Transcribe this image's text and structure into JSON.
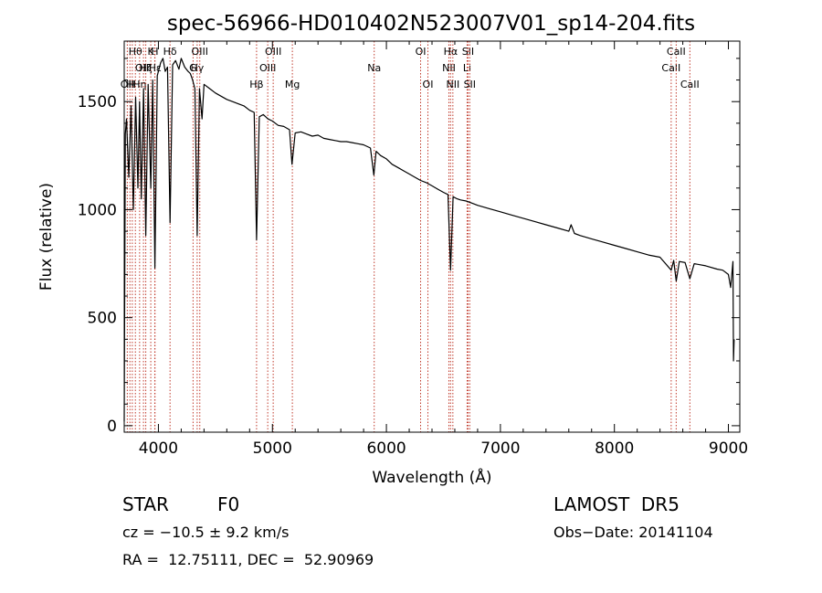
{
  "chart_data": {
    "type": "line",
    "title": "spec-56966-HD010402N523007V01_sp14-204.fits",
    "xlabel": "Wavelength (Å)",
    "ylabel": "Flux (relative)",
    "xlim": [
      3700,
      9100
    ],
    "ylim": [
      -30,
      1780
    ],
    "xticks": [
      4000,
      5000,
      6000,
      7000,
      8000,
      9000
    ],
    "yticks": [
      0,
      500,
      1000,
      1500
    ],
    "grid": false,
    "series": [
      {
        "color": "#000000",
        "points": [
          [
            3700,
            20
          ],
          [
            3710,
            1350
          ],
          [
            3720,
            1420
          ],
          [
            3740,
            1150
          ],
          [
            3760,
            1480
          ],
          [
            3780,
            1000
          ],
          [
            3800,
            1520
          ],
          [
            3820,
            1100
          ],
          [
            3835,
            1500
          ],
          [
            3850,
            1050
          ],
          [
            3870,
            1560
          ],
          [
            3889,
            880
          ],
          [
            3910,
            1580
          ],
          [
            3933,
            1100
          ],
          [
            3950,
            1600
          ],
          [
            3969,
            730
          ],
          [
            3990,
            1620
          ],
          [
            4020,
            1680
          ],
          [
            4040,
            1700
          ],
          [
            4060,
            1640
          ],
          [
            4080,
            1660
          ],
          [
            4102,
            940
          ],
          [
            4125,
            1670
          ],
          [
            4150,
            1690
          ],
          [
            4180,
            1650
          ],
          [
            4200,
            1700
          ],
          [
            4230,
            1660
          ],
          [
            4260,
            1640
          ],
          [
            4280,
            1630
          ],
          [
            4300,
            1600
          ],
          [
            4320,
            1560
          ],
          [
            4340,
            880
          ],
          [
            4360,
            1560
          ],
          [
            4383,
            1420
          ],
          [
            4400,
            1580
          ],
          [
            4450,
            1560
          ],
          [
            4500,
            1540
          ],
          [
            4550,
            1525
          ],
          [
            4600,
            1510
          ],
          [
            4650,
            1500
          ],
          [
            4700,
            1490
          ],
          [
            4750,
            1480
          ],
          [
            4800,
            1460
          ],
          [
            4840,
            1450
          ],
          [
            4861,
            860
          ],
          [
            4885,
            1430
          ],
          [
            4920,
            1440
          ],
          [
            4960,
            1420
          ],
          [
            5000,
            1410
          ],
          [
            5050,
            1390
          ],
          [
            5100,
            1385
          ],
          [
            5150,
            1370
          ],
          [
            5172,
            1210
          ],
          [
            5200,
            1355
          ],
          [
            5250,
            1360
          ],
          [
            5300,
            1350
          ],
          [
            5350,
            1340
          ],
          [
            5400,
            1345
          ],
          [
            5450,
            1330
          ],
          [
            5500,
            1325
          ],
          [
            5550,
            1320
          ],
          [
            5600,
            1315
          ],
          [
            5650,
            1315
          ],
          [
            5700,
            1310
          ],
          [
            5750,
            1305
          ],
          [
            5800,
            1300
          ],
          [
            5860,
            1285
          ],
          [
            5890,
            1160
          ],
          [
            5910,
            1270
          ],
          [
            5950,
            1250
          ],
          [
            6000,
            1235
          ],
          [
            6050,
            1210
          ],
          [
            6100,
            1195
          ],
          [
            6150,
            1180
          ],
          [
            6200,
            1165
          ],
          [
            6250,
            1150
          ],
          [
            6300,
            1135
          ],
          [
            6350,
            1125
          ],
          [
            6400,
            1110
          ],
          [
            6450,
            1095
          ],
          [
            6500,
            1080
          ],
          [
            6540,
            1070
          ],
          [
            6563,
            720
          ],
          [
            6585,
            1060
          ],
          [
            6620,
            1050
          ],
          [
            6650,
            1045
          ],
          [
            6700,
            1040
          ],
          [
            6750,
            1030
          ],
          [
            6800,
            1020
          ],
          [
            6900,
            1005
          ],
          [
            7000,
            990
          ],
          [
            7100,
            975
          ],
          [
            7200,
            960
          ],
          [
            7300,
            945
          ],
          [
            7400,
            930
          ],
          [
            7500,
            915
          ],
          [
            7600,
            900
          ],
          [
            7620,
            930
          ],
          [
            7650,
            890
          ],
          [
            7700,
            880
          ],
          [
            7800,
            865
          ],
          [
            7900,
            850
          ],
          [
            8000,
            835
          ],
          [
            8100,
            820
          ],
          [
            8200,
            805
          ],
          [
            8300,
            790
          ],
          [
            8400,
            780
          ],
          [
            8498,
            720
          ],
          [
            8520,
            765
          ],
          [
            8542,
            670
          ],
          [
            8570,
            760
          ],
          [
            8620,
            755
          ],
          [
            8662,
            680
          ],
          [
            8700,
            750
          ],
          [
            8800,
            740
          ],
          [
            8900,
            725
          ],
          [
            8950,
            720
          ],
          [
            9000,
            700
          ],
          [
            9020,
            640
          ],
          [
            9040,
            760
          ],
          [
            9045,
            300
          ],
          [
            9050,
            400
          ]
        ]
      }
    ],
    "lines": [
      {
        "x": 3727,
        "label": "OII",
        "tier": 3
      },
      {
        "x": 3750,
        "label": "H",
        "tier": 3
      },
      {
        "x": 3771,
        "label": "H",
        "tier": 3
      },
      {
        "x": 3798,
        "label": "Hθ",
        "tier": 1
      },
      {
        "x": 3835,
        "label": "Hη",
        "tier": 3
      },
      {
        "x": 3869,
        "label": "OIII",
        "tier": 2
      },
      {
        "x": 3889,
        "label": "Hζ",
        "tier": 2
      },
      {
        "x": 3933,
        "label": "K",
        "tier": 1
      },
      {
        "x": 3968,
        "label": "H",
        "tier": 1
      },
      {
        "x": 3970,
        "label": "Hε",
        "tier": 2
      },
      {
        "x": 4102,
        "label": "Hδ",
        "tier": 1
      },
      {
        "x": 4304,
        "label": "G",
        "tier": 2
      },
      {
        "x": 4340,
        "label": "Hγ",
        "tier": 2
      },
      {
        "x": 4363,
        "label": "OIII",
        "tier": 1
      },
      {
        "x": 4861,
        "label": "Hβ",
        "tier": 3
      },
      {
        "x": 4959,
        "label": "OIII",
        "tier": 2
      },
      {
        "x": 5007,
        "label": "OIII",
        "tier": 1
      },
      {
        "x": 5175,
        "label": "Mg",
        "tier": 3
      },
      {
        "x": 5893,
        "label": "Na",
        "tier": 2
      },
      {
        "x": 6300,
        "label": "OI",
        "tier": 1
      },
      {
        "x": 6364,
        "label": "OI",
        "tier": 3
      },
      {
        "x": 6548,
        "label": "NII",
        "tier": 2
      },
      {
        "x": 6563,
        "label": "Hα",
        "tier": 1
      },
      {
        "x": 6583,
        "label": "NII",
        "tier": 3
      },
      {
        "x": 6708,
        "label": "Li",
        "tier": 2
      },
      {
        "x": 6716,
        "label": "SII",
        "tier": 1
      },
      {
        "x": 6731,
        "label": "SII",
        "tier": 3
      },
      {
        "x": 8498,
        "label": "CaII",
        "tier": 2
      },
      {
        "x": 8542,
        "label": "CaII",
        "tier": 1
      },
      {
        "x": 8662,
        "label": "CaII",
        "tier": 3
      }
    ]
  },
  "info": {
    "object_class": "STAR",
    "subclass": "F0",
    "survey": "LAMOST  DR5",
    "cz": "cz = −10.5 ± 9.2 km/s",
    "obs_date": "Obs−Date: 20141104",
    "coords": "RA =  12.75111, DEC =  52.90969"
  }
}
